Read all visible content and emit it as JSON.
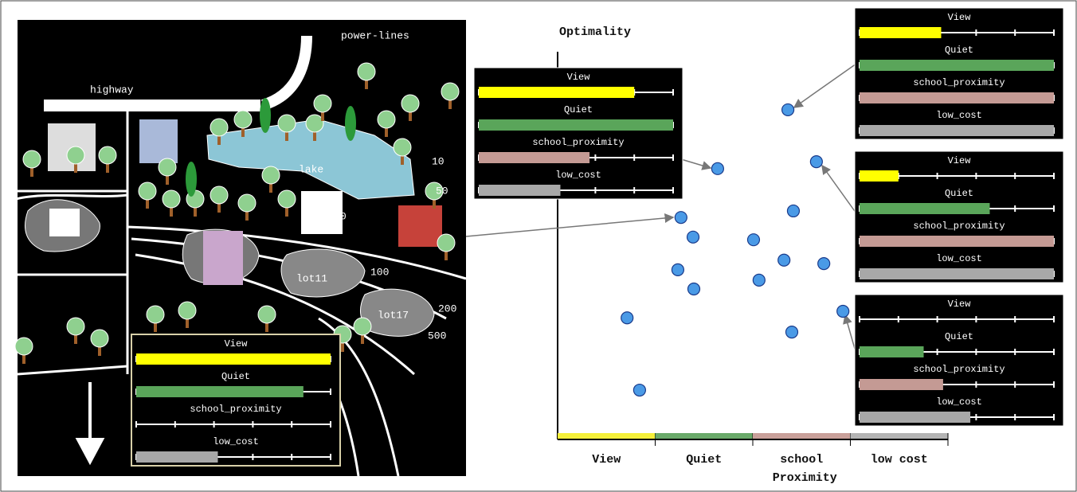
{
  "map": {
    "labels": [
      "highway",
      "power-lines",
      "lake",
      "lot11",
      "lot17",
      "100",
      "200",
      "500",
      "10",
      "50",
      "0"
    ]
  },
  "scatter": {
    "y_label": "Optimality",
    "x_segments": [
      {
        "label": [
          "View"
        ],
        "color": "#f5f03a"
      },
      {
        "label": [
          "Quiet"
        ],
        "color": "#6aaa6a"
      },
      {
        "label": [
          "school",
          "Proximity"
        ],
        "color": "#c9a09a"
      },
      {
        "label": [
          "low cost"
        ],
        "color": "#b4b4b4"
      }
    ],
    "xlim": [
      0,
      100
    ],
    "ylim": [
      0,
      100
    ],
    "points": [
      {
        "x": 59.0,
        "y": 84.9
      },
      {
        "x": 41.0,
        "y": 69.6
      },
      {
        "x": 66.3,
        "y": 71.4
      },
      {
        "x": 31.6,
        "y": 56.9
      },
      {
        "x": 60.4,
        "y": 58.6
      },
      {
        "x": 34.7,
        "y": 51.8
      },
      {
        "x": 50.2,
        "y": 51.1
      },
      {
        "x": 58.0,
        "y": 45.8
      },
      {
        "x": 68.2,
        "y": 44.9
      },
      {
        "x": 30.8,
        "y": 43.3
      },
      {
        "x": 51.6,
        "y": 40.6
      },
      {
        "x": 34.9,
        "y": 38.3
      },
      {
        "x": 73.1,
        "y": 32.5
      },
      {
        "x": 17.8,
        "y": 30.8
      },
      {
        "x": 60.0,
        "y": 27.1
      },
      {
        "x": 21.0,
        "y": 12.0
      }
    ]
  },
  "panels": [
    {
      "attributes": [
        {
          "name": "View",
          "value": 1.0,
          "color": "#ffff00"
        },
        {
          "name": "Quiet",
          "value": 0.86,
          "color": "#5aa55a"
        },
        {
          "name": "school_proximity",
          "value": 0,
          "color": "#c49a94"
        },
        {
          "name": "low_cost",
          "value": 0.42,
          "color": "#a8a8a8"
        }
      ]
    },
    {
      "attributes": [
        {
          "name": "View",
          "value": 0.8,
          "color": "#ffff00"
        },
        {
          "name": "Quiet",
          "value": 1.0,
          "color": "#5aa55a"
        },
        {
          "name": "school_proximity",
          "value": 0.57,
          "color": "#c49a94"
        },
        {
          "name": "low_cost",
          "value": 0.42,
          "color": "#a8a8a8"
        }
      ]
    },
    {
      "attributes": [
        {
          "name": "View",
          "value": 0.42,
          "color": "#ffff00"
        },
        {
          "name": "Quiet",
          "value": 1.0,
          "color": "#5aa55a"
        },
        {
          "name": "school_proximity",
          "value": 1.0,
          "color": "#c49a94"
        },
        {
          "name": "low_cost",
          "value": 1.0,
          "color": "#a8a8a8"
        }
      ]
    },
    {
      "attributes": [
        {
          "name": "View",
          "value": 0.2,
          "color": "#ffff00"
        },
        {
          "name": "Quiet",
          "value": 0.67,
          "color": "#5aa55a"
        },
        {
          "name": "school_proximity",
          "value": 1.0,
          "color": "#c49a94"
        },
        {
          "name": "low_cost",
          "value": 1.0,
          "color": "#a8a8a8"
        }
      ]
    },
    {
      "attributes": [
        {
          "name": "View",
          "value": 0,
          "color": "#ffff00"
        },
        {
          "name": "Quiet",
          "value": 0.33,
          "color": "#5aa55a"
        },
        {
          "name": "school_proximity",
          "value": 0.43,
          "color": "#c49a94"
        },
        {
          "name": "low_cost",
          "value": 0.57,
          "color": "#a8a8a8"
        }
      ]
    }
  ]
}
